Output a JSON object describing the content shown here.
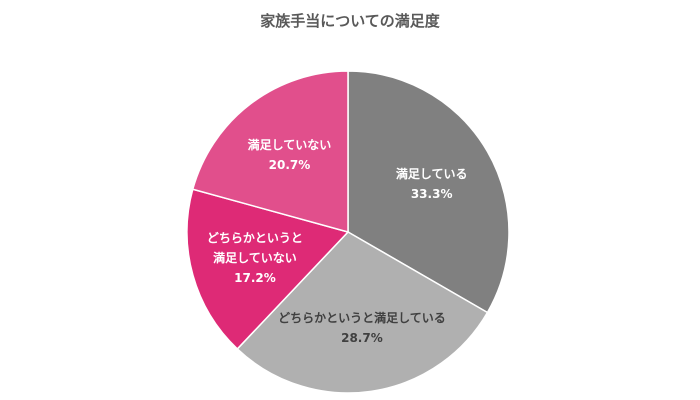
{
  "chart_data": {
    "type": "pie",
    "title": "家族手当についての満足度",
    "categories": [
      "満足している",
      "どちらかというと満足している",
      "どちらかというと\n満足していない",
      "満足していない"
    ],
    "values": [
      33.3,
      28.7,
      17.2,
      20.7
    ],
    "value_labels": [
      "33.3%",
      "28.7%",
      "17.2%",
      "20.7%"
    ],
    "colors": [
      "#808080",
      "#b0b0b0",
      "#de2a76",
      "#e14f8c"
    ]
  }
}
